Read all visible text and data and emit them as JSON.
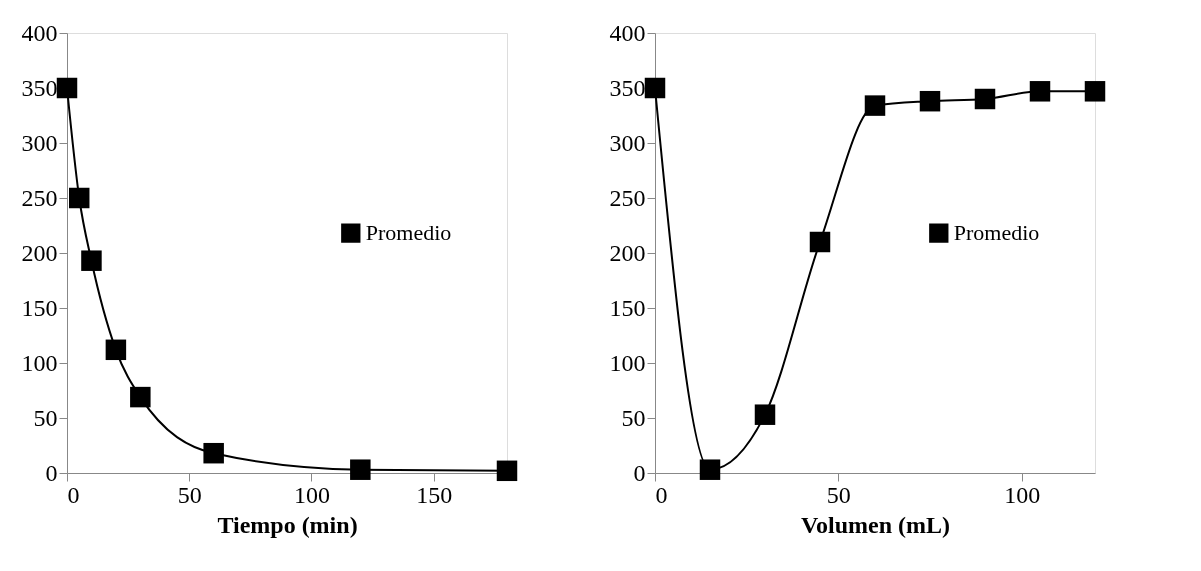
{
  "chart_data": [
    {
      "type": "line",
      "xlabel": "Tiempo (min)",
      "x": [
        0,
        5,
        10,
        20,
        30,
        60,
        120,
        180
      ],
      "xlim": [
        0,
        180
      ],
      "xticks": [
        0,
        50,
        100,
        150
      ],
      "ylim": [
        0,
        400
      ],
      "yticks": [
        0,
        50,
        100,
        150,
        200,
        250,
        300,
        350,
        400
      ],
      "grid": false,
      "legend": "right",
      "marker": "square",
      "line_style": "solid",
      "series": [
        {
          "name": "Promedio",
          "color": "#000000",
          "values": [
            350,
            250,
            193,
            112,
            69,
            18,
            3,
            2
          ]
        }
      ]
    },
    {
      "type": "line",
      "xlabel": "Volumen (mL)",
      "x": [
        0,
        15,
        30,
        45,
        60,
        75,
        90,
        105,
        120
      ],
      "xlim": [
        0,
        120
      ],
      "xticks": [
        0,
        50,
        100
      ],
      "ylim": [
        0,
        400
      ],
      "yticks": [
        0,
        50,
        100,
        150,
        200,
        250,
        300,
        350,
        400
      ],
      "grid": false,
      "legend": "right",
      "marker": "square",
      "line_style": "solid",
      "series": [
        {
          "name": "Promedio",
          "color": "#000000",
          "values": [
            350,
            3,
            53,
            210,
            334,
            338,
            340,
            347,
            347
          ]
        }
      ]
    }
  ]
}
